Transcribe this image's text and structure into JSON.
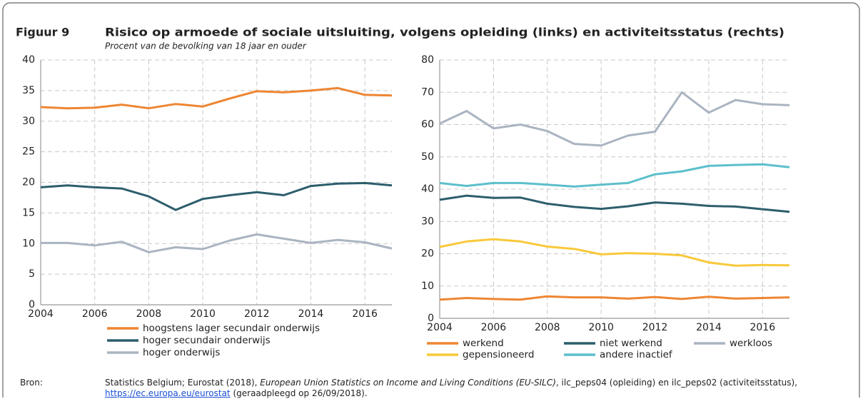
{
  "figure": {
    "label": "Figuur 9",
    "title": "Risico op armoede of sociale uitsluiting, volgens opleiding (links) en activiteitsstatus (rechts)",
    "subtitle": "Procent van de bevolking van 18 jaar en ouder",
    "source_label": "Bron:",
    "source": [
      "Statistics Belgium; Eurostat (2018), ",
      "European Union Statistics on Income and Living Conditions (EU-SILC)",
      ", ilc_peps04 (opleiding) en ilc_peps02 (activiteitsstatus), ",
      "https://ec.europa.eu/eurostat",
      " (geraadpleegd op 26/09/2018)."
    ]
  },
  "chart_data": [
    {
      "type": "line",
      "x": [
        2004,
        2005,
        2006,
        2007,
        2008,
        2009,
        2010,
        2011,
        2012,
        2013,
        2014,
        2015,
        2016,
        2017
      ],
      "xlim": [
        2004,
        2017
      ],
      "xticks": [
        2004,
        2006,
        2008,
        2010,
        2012,
        2014,
        2016
      ],
      "ylim": [
        0,
        40
      ],
      "yticks": [
        0,
        5,
        10,
        15,
        20,
        25,
        30,
        35,
        40
      ],
      "grid": true,
      "series": [
        {
          "name": "hoogstens lager secundair onderwijs",
          "color": "#ee8633",
          "values": [
            32.3,
            32.1,
            32.2,
            32.7,
            32.1,
            32.8,
            32.4,
            33.7,
            34.9,
            34.7,
            35.0,
            35.4,
            34.3,
            34.2
          ]
        },
        {
          "name": "hoger secundair onderwijs",
          "color": "#2d5e6d",
          "values": [
            19.2,
            19.5,
            19.2,
            19.0,
            17.7,
            15.5,
            17.3,
            17.9,
            18.4,
            17.9,
            19.4,
            19.8,
            19.9,
            19.5
          ]
        },
        {
          "name": "hoger onderwijs",
          "color": "#aab4c1",
          "values": [
            10.1,
            10.1,
            9.7,
            10.3,
            8.6,
            9.4,
            9.1,
            10.5,
            11.5,
            10.8,
            10.1,
            10.6,
            10.2,
            9.2
          ]
        }
      ]
    },
    {
      "type": "line",
      "x": [
        2004,
        2005,
        2006,
        2007,
        2008,
        2009,
        2010,
        2011,
        2012,
        2013,
        2014,
        2015,
        2016,
        2017
      ],
      "xlim": [
        2004,
        2017
      ],
      "xticks": [
        2004,
        2006,
        2008,
        2010,
        2012,
        2014,
        2016
      ],
      "ylim": [
        0,
        80
      ],
      "yticks": [
        0,
        10,
        20,
        30,
        40,
        50,
        60,
        70,
        80
      ],
      "grid": true,
      "series": [
        {
          "name": "werkend",
          "color": "#ee8633",
          "values": [
            5.8,
            6.3,
            6.0,
            5.8,
            6.8,
            6.5,
            6.5,
            6.1,
            6.6,
            6.0,
            6.7,
            6.1,
            6.3,
            6.5
          ]
        },
        {
          "name": "niet werkend",
          "color": "#2d5e6d",
          "values": [
            36.7,
            38.0,
            37.3,
            37.4,
            35.5,
            34.5,
            33.9,
            34.7,
            35.9,
            35.5,
            34.8,
            34.6,
            33.8,
            33.0
          ]
        },
        {
          "name": "werkloos",
          "color": "#aab4c1",
          "values": [
            60.3,
            64.2,
            58.8,
            60.0,
            58.0,
            54.0,
            53.5,
            56.6,
            57.8,
            70.0,
            63.7,
            67.6,
            66.3,
            66.0
          ]
        },
        {
          "name": "gepensioneerd",
          "color": "#f8c93a",
          "values": [
            22.1,
            23.8,
            24.5,
            23.8,
            22.2,
            21.5,
            19.8,
            20.2,
            20.0,
            19.5,
            17.3,
            16.3,
            16.5,
            16.4
          ]
        },
        {
          "name": "andere inactief",
          "color": "#5cbfcb",
          "values": [
            41.9,
            41.0,
            41.9,
            41.9,
            41.4,
            40.8,
            41.4,
            41.9,
            44.6,
            45.5,
            47.2,
            47.5,
            47.7,
            46.8
          ]
        }
      ]
    }
  ]
}
